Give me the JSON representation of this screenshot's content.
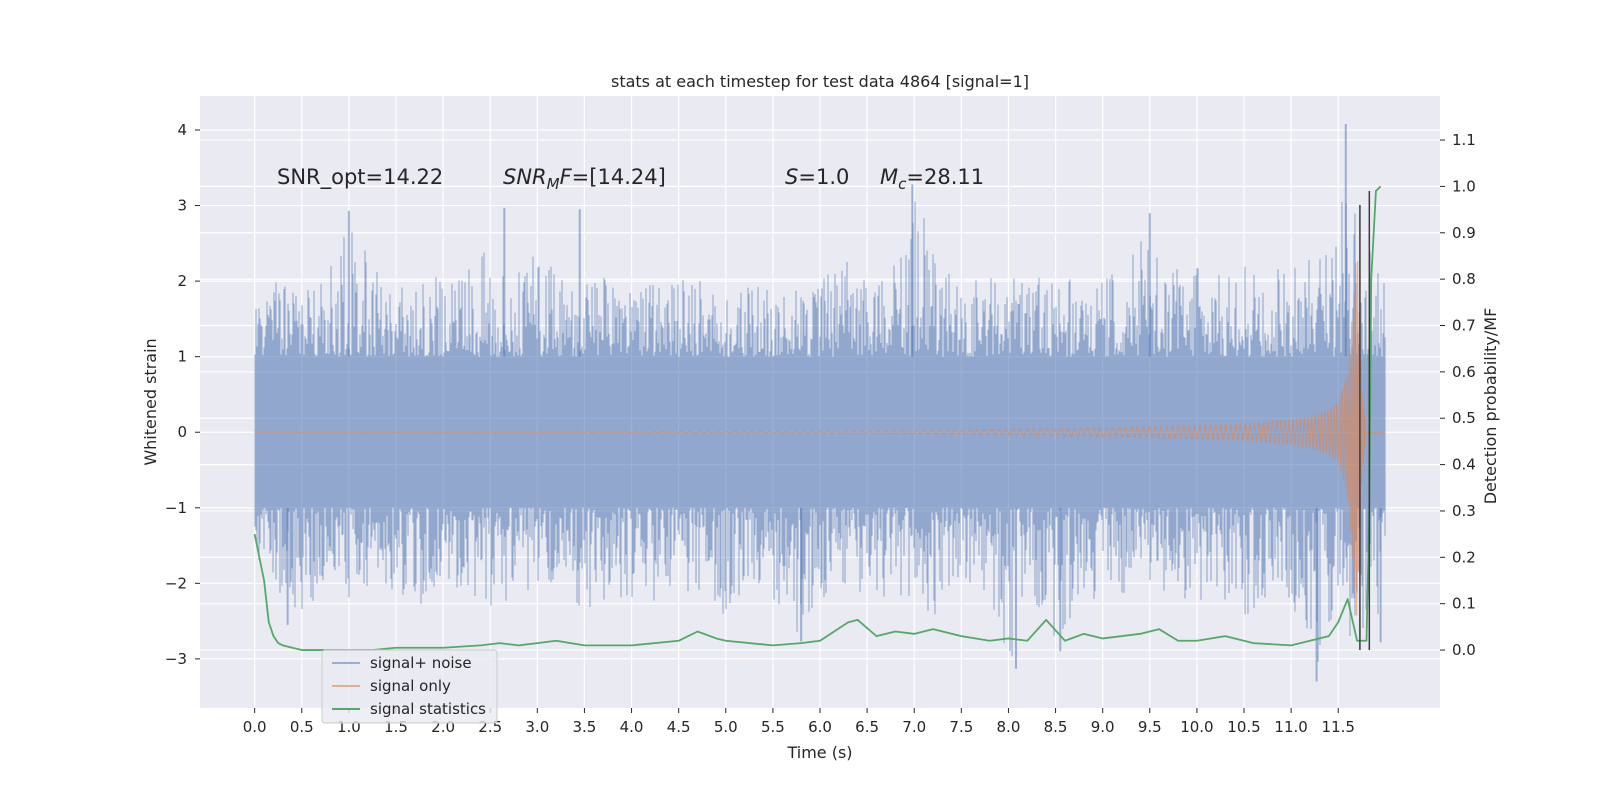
{
  "chart_data": {
    "type": "line",
    "title": "stats at each timestep for test data 4864 [signal=1]",
    "xlabel": "Time (s)",
    "ylabel": "Whitened strain",
    "y2label": "Detection probability/MF",
    "xlim": [
      -0.58,
      12.58
    ],
    "ylim": [
      -3.65,
      4.45
    ],
    "y2lim": [
      -0.125,
      1.195
    ],
    "x_ticks": [
      0.0,
      0.5,
      1.0,
      1.5,
      2.0,
      2.5,
      3.0,
      3.5,
      4.0,
      4.5,
      5.0,
      5.5,
      6.0,
      6.5,
      7.0,
      7.5,
      8.0,
      8.5,
      9.0,
      9.5,
      10.0,
      10.5,
      11.0,
      11.5
    ],
    "x_tick_labels": [
      "0.0",
      "0.5",
      "1.0",
      "1.5",
      "2.0",
      "2.5",
      "3.0",
      "3.5",
      "4.0",
      "4.5",
      "5.0",
      "5.5",
      "6.0",
      "6.5",
      "7.0",
      "7.5",
      "8.0",
      "8.5",
      "9.0",
      "9.5",
      "10.0",
      "10.5",
      "11.0",
      "11.5"
    ],
    "y_ticks": [
      -3,
      -2,
      -1,
      0,
      1,
      2,
      3,
      4
    ],
    "y_tick_labels": [
      "−3",
      "−2",
      "−1",
      "0",
      "1",
      "2",
      "3",
      "4"
    ],
    "y2_ticks": [
      0.0,
      0.1,
      0.2,
      0.3,
      0.4,
      0.5,
      0.6,
      0.7,
      0.8,
      0.9,
      1.0,
      1.1
    ],
    "y2_tick_labels": [
      "0.0",
      "0.1",
      "0.2",
      "0.3",
      "0.4",
      "0.5",
      "0.6",
      "0.7",
      "0.8",
      "0.9",
      "1.0",
      "1.1"
    ],
    "grid": true,
    "legend_position": "lower-left",
    "colors": {
      "background": "#eaeaf2",
      "grid": "#ffffff",
      "noise": "#4c72b0",
      "signal": "#dd8452",
      "stats": "#55a868",
      "marker": "#3a3a3a"
    },
    "annotations": [
      {
        "prefix": "SNR_opt=",
        "value": "14.22"
      },
      {
        "prefix": "SNR",
        "subscript": "M",
        "suffix": "F=",
        "value": "[14.24]"
      },
      {
        "prefix": "S",
        "suffix": "=",
        "value": "1.0"
      },
      {
        "prefix": "M",
        "subscript": "c",
        "suffix": "=",
        "value": "28.11"
      }
    ],
    "noise_envelope": {
      "t": [
        0.0,
        0.25,
        0.5,
        0.75,
        1.0,
        1.25,
        1.5,
        1.75,
        2.0,
        2.25,
        2.5,
        2.75,
        3.0,
        3.25,
        3.5,
        3.75,
        4.0,
        4.25,
        4.5,
        4.75,
        5.0,
        5.25,
        5.5,
        5.75,
        6.0,
        6.25,
        6.5,
        6.75,
        7.0,
        7.25,
        7.5,
        7.75,
        8.0,
        8.25,
        8.5,
        8.75,
        9.0,
        9.25,
        9.5,
        9.75,
        10.0,
        10.25,
        10.5,
        10.75,
        11.0,
        11.25,
        11.5,
        11.6,
        11.7,
        11.8,
        11.9,
        12.0
      ],
      "upper": [
        1.6,
        2.1,
        1.9,
        2.0,
        2.9,
        2.2,
        1.9,
        2.0,
        2.1,
        2.2,
        2.9,
        2.1,
        2.4,
        2.1,
        2.0,
        2.1,
        1.9,
        2.0,
        2.1,
        2.0,
        1.9,
        2.0,
        2.1,
        1.9,
        2.0,
        2.3,
        2.1,
        2.2,
        3.3,
        2.2,
        2.0,
        2.1,
        2.1,
        2.0,
        2.2,
        2.1,
        2.1,
        2.2,
        2.9,
        2.2,
        2.2,
        2.1,
        2.3,
        2.0,
        2.4,
        2.3,
        2.6,
        4.1,
        2.6,
        2.5,
        2.3,
        2.7
      ],
      "lower": [
        -1.6,
        -2.2,
        -2.4,
        -2.1,
        -2.2,
        -2.0,
        -2.1,
        -2.3,
        -2.0,
        -2.1,
        -2.3,
        -2.2,
        -2.2,
        -2.0,
        -2.6,
        -2.2,
        -2.2,
        -2.3,
        -2.1,
        -2.2,
        -2.5,
        -2.1,
        -2.3,
        -2.7,
        -2.4,
        -2.2,
        -2.1,
        -2.3,
        -2.2,
        -2.5,
        -2.2,
        -2.1,
        -3.1,
        -2.2,
        -2.9,
        -2.3,
        -2.2,
        -2.3,
        -2.1,
        -2.2,
        -2.3,
        -2.2,
        -2.6,
        -2.2,
        -2.3,
        -3.3,
        -2.4,
        -3.0,
        -2.9,
        -2.5,
        -2.4,
        -2.8
      ],
      "spikes": [
        [
          1.0,
          2.93
        ],
        [
          2.65,
          2.97
        ],
        [
          3.45,
          2.95
        ],
        [
          6.98,
          3.28
        ],
        [
          9.5,
          2.9
        ],
        [
          11.58,
          4.08
        ],
        [
          0.35,
          -2.55
        ],
        [
          5.8,
          -2.77
        ],
        [
          8.08,
          -3.13
        ],
        [
          8.55,
          -2.9
        ],
        [
          11.27,
          -3.3
        ],
        [
          11.95,
          -2.78
        ]
      ]
    },
    "signal_envelope": {
      "t": [
        0.0,
        4.0,
        7.0,
        8.0,
        9.0,
        10.0,
        10.5,
        11.0,
        11.2,
        11.4,
        11.5,
        11.6,
        11.65,
        11.7,
        11.75,
        11.8,
        12.0
      ],
      "amplitude": [
        0.0,
        0.005,
        0.02,
        0.04,
        0.06,
        0.09,
        0.11,
        0.16,
        0.2,
        0.3,
        0.4,
        0.8,
        1.6,
        2.5,
        0.6,
        0.03,
        0.0
      ]
    },
    "series": [
      {
        "name": "signal+ noise",
        "axis": "left",
        "style": "filled-band"
      },
      {
        "name": "signal only",
        "axis": "left",
        "style": "chirp"
      },
      {
        "name": "signal statistics",
        "axis": "right",
        "x": [
          0.0,
          0.1,
          0.15,
          0.2,
          0.25,
          0.3,
          0.4,
          0.5,
          0.75,
          1.0,
          1.25,
          1.5,
          2.0,
          2.4,
          2.6,
          2.8,
          3.0,
          3.2,
          3.5,
          4.0,
          4.5,
          4.7,
          4.9,
          5.0,
          5.5,
          5.8,
          6.0,
          6.3,
          6.4,
          6.6,
          6.8,
          7.0,
          7.2,
          7.5,
          7.8,
          8.0,
          8.2,
          8.4,
          8.6,
          8.8,
          9.0,
          9.4,
          9.6,
          9.8,
          10.0,
          10.3,
          10.6,
          11.0,
          11.2,
          11.4,
          11.5,
          11.6,
          11.7,
          11.75,
          11.8,
          11.83,
          11.85,
          11.9,
          11.95
        ],
        "values": [
          0.25,
          0.15,
          0.06,
          0.03,
          0.015,
          0.01,
          0.005,
          0.0,
          0.0,
          0.0,
          0.0,
          0.005,
          0.005,
          0.01,
          0.015,
          0.01,
          0.015,
          0.02,
          0.01,
          0.01,
          0.02,
          0.04,
          0.025,
          0.02,
          0.01,
          0.015,
          0.02,
          0.06,
          0.065,
          0.03,
          0.04,
          0.035,
          0.045,
          0.03,
          0.02,
          0.025,
          0.02,
          0.065,
          0.02,
          0.035,
          0.025,
          0.035,
          0.045,
          0.02,
          0.02,
          0.03,
          0.015,
          0.01,
          0.02,
          0.03,
          0.06,
          0.11,
          0.02,
          0.02,
          0.02,
          0.3,
          0.8,
          0.99,
          1.0
        ]
      }
    ],
    "markers": [
      {
        "x": 11.83,
        "y_top": 0.99,
        "y_bottom": 0.0
      },
      {
        "x": 11.73,
        "y_top": 0.96,
        "y_bottom": 0.0
      }
    ]
  }
}
